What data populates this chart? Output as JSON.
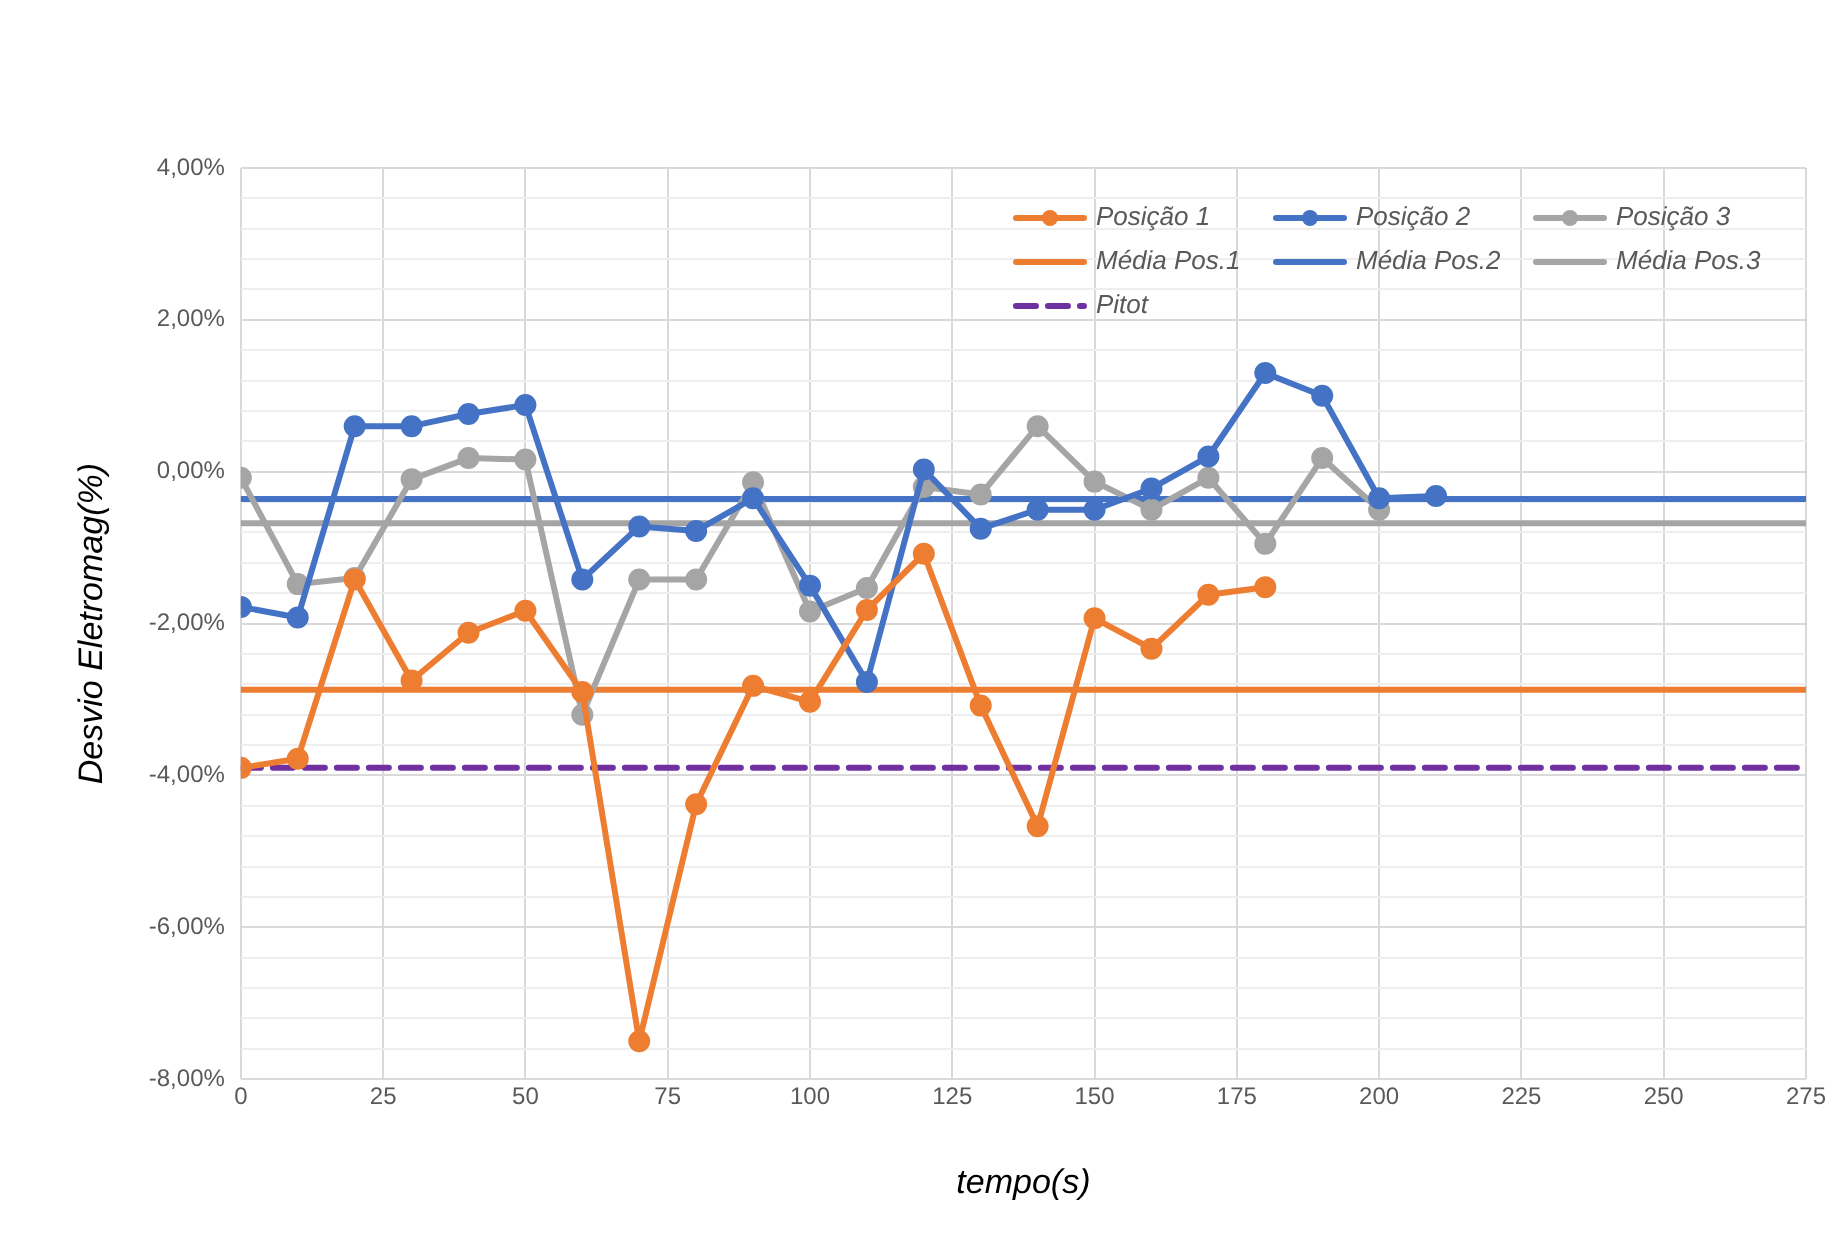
{
  "chart_data": {
    "type": "line",
    "xlabel": "tempo(s)",
    "ylabel": "Desvio Eletromag(%)",
    "xlim": [
      0,
      275
    ],
    "xticks": [
      0,
      25,
      50,
      75,
      100,
      125,
      150,
      175,
      200,
      225,
      250,
      275
    ],
    "ylim": [
      -8,
      4
    ],
    "yticks": [
      {
        "value": -8,
        "label": "-8,00%"
      },
      {
        "value": -7.6,
        "label": null
      },
      {
        "value": -7.2,
        "label": null
      },
      {
        "value": -6.8,
        "label": null
      },
      {
        "value": -6.4,
        "label": null
      },
      {
        "value": -6,
        "label": "-6,00%"
      },
      {
        "value": -5.6,
        "label": null
      },
      {
        "value": -5.2,
        "label": null
      },
      {
        "value": -4.8,
        "label": null
      },
      {
        "value": -4.4,
        "label": null
      },
      {
        "value": -4,
        "label": "-4,00%"
      },
      {
        "value": -3.6,
        "label": null
      },
      {
        "value": -3.2,
        "label": null
      },
      {
        "value": -2.8,
        "label": null
      },
      {
        "value": -2.4,
        "label": null
      },
      {
        "value": -2,
        "label": "-2,00%"
      },
      {
        "value": -1.6,
        "label": null
      },
      {
        "value": -1.2,
        "label": null
      },
      {
        "value": -0.8,
        "label": null
      },
      {
        "value": -0.4,
        "label": null
      },
      {
        "value": 0,
        "label": "0,00%"
      },
      {
        "value": 0.4,
        "label": null
      },
      {
        "value": 0.8,
        "label": null
      },
      {
        "value": 1.2,
        "label": null
      },
      {
        "value": 1.6,
        "label": null
      },
      {
        "value": 2,
        "label": "2,00%"
      },
      {
        "value": 2.4,
        "label": null
      },
      {
        "value": 2.8,
        "label": null
      },
      {
        "value": 3.2,
        "label": null
      },
      {
        "value": 3.6,
        "label": null
      },
      {
        "value": 4,
        "label": "4,00%"
      }
    ],
    "grid": true,
    "legend": "top right",
    "marker": "circle",
    "line_style": "solid",
    "series": [
      {
        "name": "Posição 1",
        "color": "#ed7d31",
        "x": [
          0,
          10,
          20,
          30,
          40,
          50,
          60,
          70,
          80,
          90,
          100,
          110,
          120,
          130,
          140,
          150,
          160,
          170,
          180
        ],
        "values": [
          -3.9,
          -3.78,
          -1.42,
          -2.75,
          -2.12,
          -1.83,
          -2.9,
          -7.5,
          -4.38,
          -2.82,
          -3.03,
          -1.82,
          -1.08,
          -3.08,
          -4.67,
          -1.93,
          -2.33,
          -1.62,
          -1.52
        ]
      },
      {
        "name": "Posição 2",
        "color": "#4472c4",
        "x": [
          0,
          10,
          20,
          30,
          40,
          50,
          60,
          70,
          80,
          90,
          100,
          110,
          120,
          130,
          140,
          150,
          160,
          170,
          180,
          190,
          200,
          210
        ],
        "values": [
          -1.78,
          -1.92,
          0.6,
          0.6,
          0.76,
          0.88,
          -1.42,
          -0.72,
          -0.78,
          -0.35,
          -1.5,
          -2.77,
          0.03,
          -0.75,
          -0.5,
          -0.5,
          -0.22,
          0.2,
          1.3,
          1.0,
          -0.35,
          -0.32
        ]
      },
      {
        "name": "Posição 3",
        "color": "#a5a5a5",
        "x": [
          0,
          10,
          20,
          30,
          40,
          50,
          60,
          70,
          80,
          90,
          100,
          110,
          120,
          130,
          140,
          150,
          160,
          170,
          180,
          190,
          200
        ],
        "values": [
          -0.08,
          -1.48,
          -1.4,
          -0.1,
          0.18,
          0.16,
          -3.2,
          -1.42,
          -1.42,
          -0.14,
          -1.84,
          -1.53,
          -0.2,
          -0.3,
          0.6,
          -0.13,
          -0.5,
          -0.08,
          -0.95,
          0.18,
          -0.5
        ]
      },
      {
        "name": "Média Pos.1",
        "color": "#ed7d31",
        "marker": "none",
        "x": [
          0,
          275
        ],
        "values": [
          -2.87,
          -2.87
        ]
      },
      {
        "name": "Média Pos.2",
        "color": "#4472c4",
        "marker": "none",
        "x": [
          0,
          275
        ],
        "values": [
          -0.36,
          -0.36
        ]
      },
      {
        "name": "Média Pos.3",
        "color": "#a5a5a5",
        "marker": "none",
        "x": [
          0,
          275
        ],
        "values": [
          -0.68,
          -0.68
        ]
      },
      {
        "name": "Pitot",
        "color": "#7030a0",
        "marker": "none",
        "line_style": "dashed",
        "x": [
          0,
          275
        ],
        "values": [
          -3.9,
          -3.9
        ]
      }
    ]
  }
}
